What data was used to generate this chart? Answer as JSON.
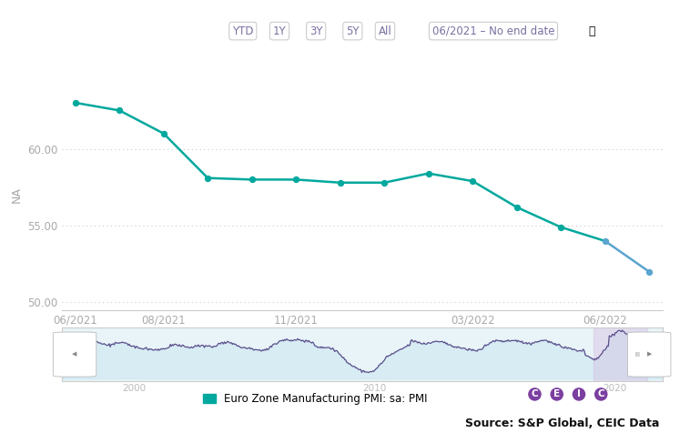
{
  "values": [
    63.0,
    62.5,
    61.0,
    58.1,
    58.0,
    58.0,
    57.8,
    57.8,
    58.4,
    57.9,
    56.2,
    54.9,
    54.0,
    52.0
  ],
  "split_idx": 12,
  "teal_color": "#00a89d",
  "blue_color": "#5ba4cf",
  "ylim_min": 49.5,
  "ylim_max": 64.5,
  "yticks": [
    50.0,
    55.0,
    60.0
  ],
  "ylabel": "NA",
  "x_tick_labels": [
    "06/2021",
    "08/2021",
    "11/2021",
    "03/2022",
    "06/2022"
  ],
  "x_tick_positions": [
    0,
    2,
    5,
    9,
    12
  ],
  "nav_line_color": "#5b4f8c",
  "nav_bg_color": "#e8f4f8",
  "nav_fill_color": "#c8e6ef",
  "nav_highlight_color": "#d4b8e0",
  "legend_label": "Euro Zone Manufacturing PMI: sa: PMI",
  "legend_color": "#00a89d",
  "source_text": "Source: S&P Global, CEIC Data",
  "title_buttons": [
    "YTD",
    "1Y",
    "3Y",
    "5Y",
    "All"
  ],
  "date_range_text": "06/2021 – No end date",
  "bg_color": "#ffffff",
  "grid_color": "#cccccc",
  "axis_label_color": "#aaaaaa",
  "button_text_color": "#7b6fa0",
  "button_border_color": "#cccccc"
}
